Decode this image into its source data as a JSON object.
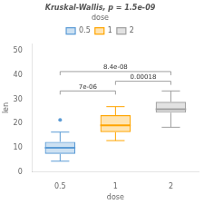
{
  "chart_data": {
    "type": "box",
    "title": "Kruskal-Wallis, p = 1.5e-09",
    "xlabel": "dose",
    "ylabel": "len",
    "legend_title": "dose",
    "legend": "top",
    "grid": false,
    "categories": [
      "0.5",
      "1",
      "2"
    ],
    "series": [
      {
        "name": "0.5",
        "color": "#5b9bd5",
        "median": 10.0,
        "q1": 7.5,
        "q3": 12.5,
        "whisker_low": 4.5,
        "whisker_high": 16.5,
        "outliers": [
          21.5
        ]
      },
      {
        "name": "1",
        "color": "#ffa500",
        "median": 19.25,
        "q1": 16.5,
        "q3": 23.5,
        "whisker_low": 13.0,
        "whisker_high": 27.0,
        "outliers": []
      },
      {
        "name": "2",
        "color": "#a0a0a0",
        "median": 25.95,
        "q1": 24.5,
        "q3": 29.0,
        "whisker_low": 18.5,
        "whisker_high": 33.5,
        "outliers": []
      }
    ],
    "annotations": [
      {
        "x1": "0.5",
        "x2": "1",
        "y": 33.5,
        "label": "7e-06"
      },
      {
        "x1": "0.5",
        "x2": "2",
        "y": 41.5,
        "label": "8.4e-08"
      },
      {
        "x1": "1",
        "x2": "2",
        "y": 37.5,
        "label": "0.00018"
      }
    ],
    "ylim": [
      0,
      53
    ],
    "yticks": [
      0,
      10,
      20,
      30,
      40,
      50
    ]
  }
}
